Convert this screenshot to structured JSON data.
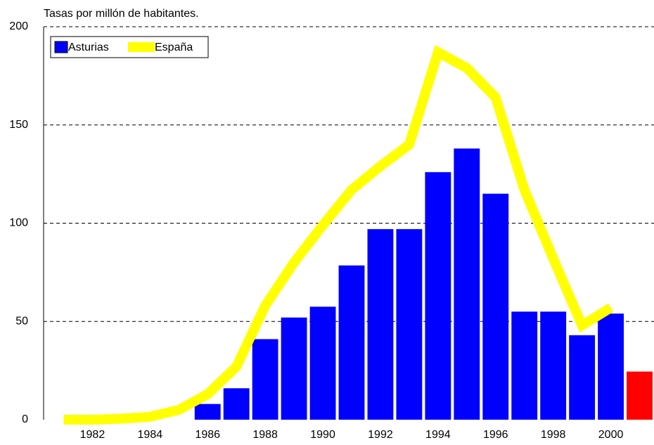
{
  "chart_data": {
    "type": "bar",
    "title": "Tasas por millón de habitantes.",
    "categories": [
      null,
      "1982",
      null,
      "1984",
      null,
      "1986",
      null,
      "1988",
      null,
      "1990",
      null,
      "1992",
      null,
      "1994",
      null,
      "1996",
      null,
      "1998",
      null,
      "2000",
      null
    ],
    "series": [
      {
        "name": "Asturias",
        "type": "bar",
        "color": "#0000ff",
        "colors": [
          "#0000ff",
          "#0000ff",
          "#0000ff",
          "#0000ff",
          "#0000ff",
          "#0000ff",
          "#0000ff",
          "#0000ff",
          "#0000ff",
          "#0000ff",
          "#0000ff",
          "#0000ff",
          "#0000ff",
          "#0000ff",
          "#0000ff",
          "#0000ff",
          "#0000ff",
          "#0000ff",
          "#0000ff",
          "#0000ff",
          "#ff0000"
        ],
        "values": [
          null,
          null,
          null,
          null,
          null,
          8,
          16,
          41,
          52,
          57.5,
          78.5,
          97,
          97,
          126,
          138,
          115,
          55,
          55,
          43,
          54,
          24.5
        ]
      },
      {
        "name": "España",
        "type": "line",
        "color": "#ffff00",
        "values": [
          0,
          0,
          0.5,
          1.5,
          5,
          13,
          27,
          58,
          80,
          99,
          117,
          129,
          140,
          187,
          179,
          164,
          117,
          82,
          48,
          57,
          null
        ]
      }
    ],
    "ylim": [
      0,
      200
    ],
    "yticks": [
      0,
      50,
      100,
      150,
      200
    ],
    "grid": true,
    "legend": "top-left"
  }
}
